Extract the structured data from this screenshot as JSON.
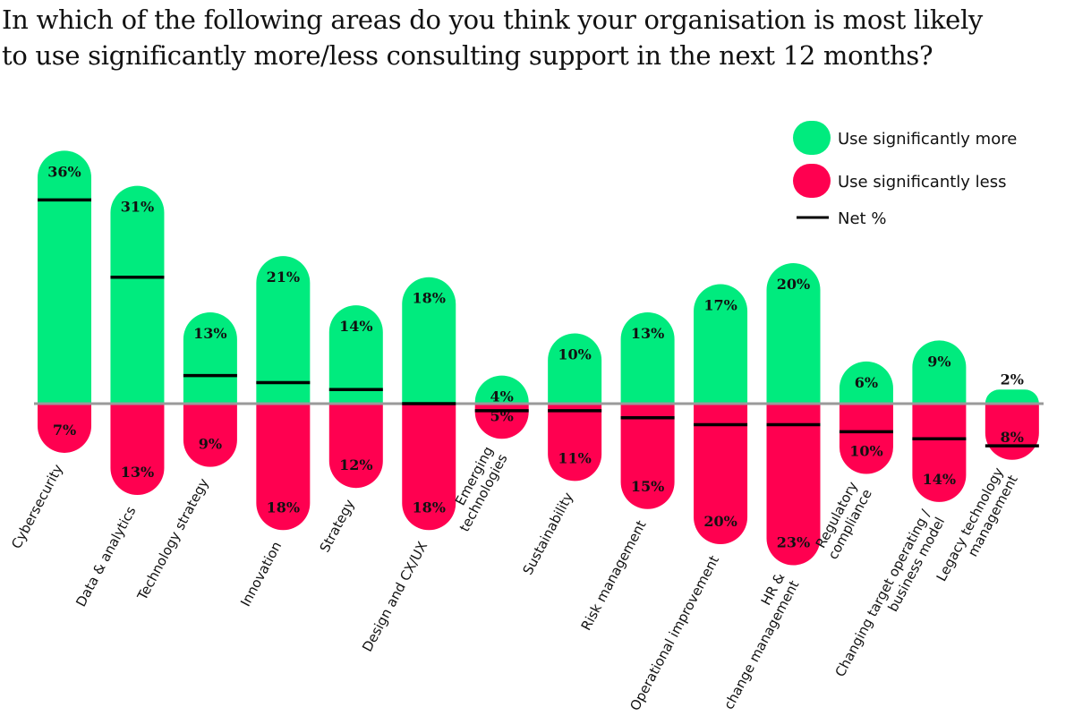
{
  "chart_data": {
    "type": "bar",
    "title": "In which of the following areas do you think your organisation is most likely to use significantly more/less consulting support in the next 12 months?",
    "categories": [
      [
        "Cybersecurity"
      ],
      [
        "Data & analytics"
      ],
      [
        "Technology strategy"
      ],
      [
        "Innovation"
      ],
      [
        "Strategy"
      ],
      [
        "Design and CX/UX"
      ],
      [
        "Emerging",
        "technologies"
      ],
      [
        "Sustainability"
      ],
      [
        "Risk management"
      ],
      [
        "Operational improvement"
      ],
      [
        "HR &",
        "change management"
      ],
      [
        "Regulatory",
        "compliance"
      ],
      [
        "Changing target operating /",
        "business model"
      ],
      [
        "Legacy technology",
        "management"
      ]
    ],
    "series": [
      {
        "name": "Use significantly more",
        "color": "#00EB7E",
        "values": [
          36,
          31,
          13,
          21,
          14,
          18,
          4,
          10,
          13,
          17,
          20,
          6,
          9,
          2
        ]
      },
      {
        "name": "Use significantly less",
        "color": "#FF0050",
        "values": [
          7,
          13,
          9,
          18,
          12,
          18,
          5,
          11,
          15,
          20,
          23,
          10,
          14,
          8
        ]
      },
      {
        "name": "Net %",
        "color": "#000000",
        "values": [
          29,
          18,
          4,
          3,
          2,
          0,
          -1,
          -1,
          -2,
          -3,
          -3,
          -4,
          -5,
          -6
        ]
      }
    ],
    "value_suffix": "%",
    "legend_position": "top-right",
    "grid": false,
    "ylim": [
      -23,
      36
    ]
  }
}
